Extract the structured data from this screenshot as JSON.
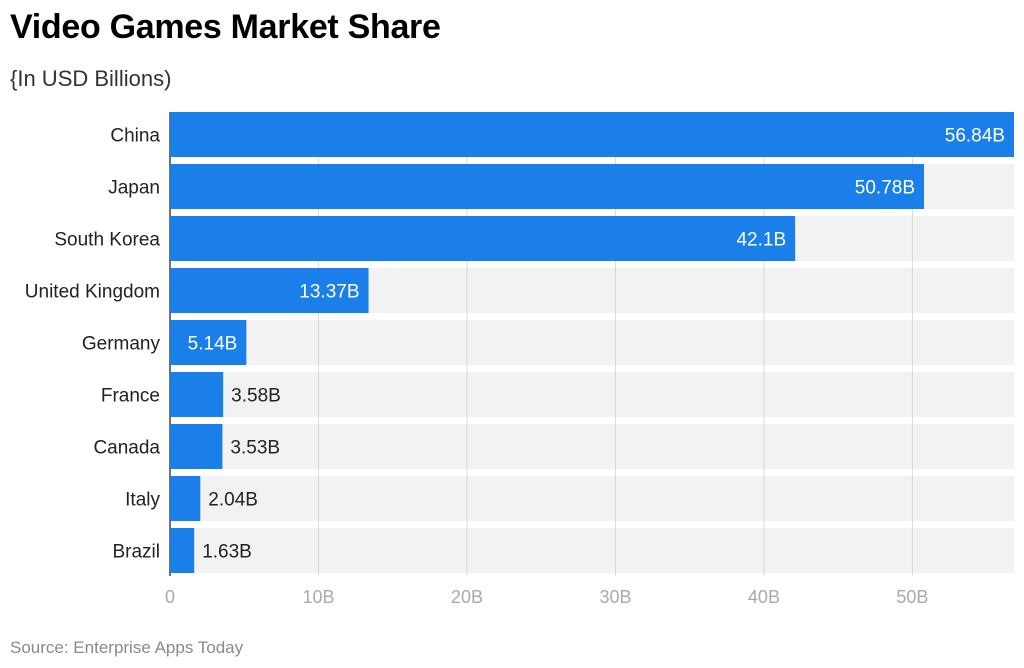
{
  "title": "Video Games Market Share",
  "subtitle": "{In USD Billions)",
  "source": "Source: Enterprise Apps Today",
  "colors": {
    "bar": "#1a7fe8",
    "track": "#f2f2f2",
    "grid": "#d9d9d9",
    "axis_text": "#aaaaaa",
    "label_inside": "#ffffff",
    "label_outside": "#222222"
  },
  "chart_data": {
    "type": "bar",
    "orientation": "horizontal",
    "categories": [
      "China",
      "Japan",
      "South Korea",
      "United Kingdom",
      "Germany",
      "France",
      "Canada",
      "Italy",
      "Brazil"
    ],
    "values": [
      56.84,
      50.78,
      42.1,
      13.37,
      5.14,
      3.58,
      3.53,
      2.04,
      1.63
    ],
    "data_labels": [
      "56.84B",
      "50.78B",
      "42.1B",
      "13.37B",
      "5.14B",
      "3.58B",
      "3.53B",
      "2.04B",
      "1.63B"
    ],
    "xlim": [
      0,
      56.84
    ],
    "x_ticks": [
      0,
      10,
      20,
      30,
      40,
      50
    ],
    "x_tick_labels": [
      "0",
      "10B",
      "20B",
      "30B",
      "40B",
      "50B"
    ],
    "grid": true,
    "legend": "none"
  }
}
